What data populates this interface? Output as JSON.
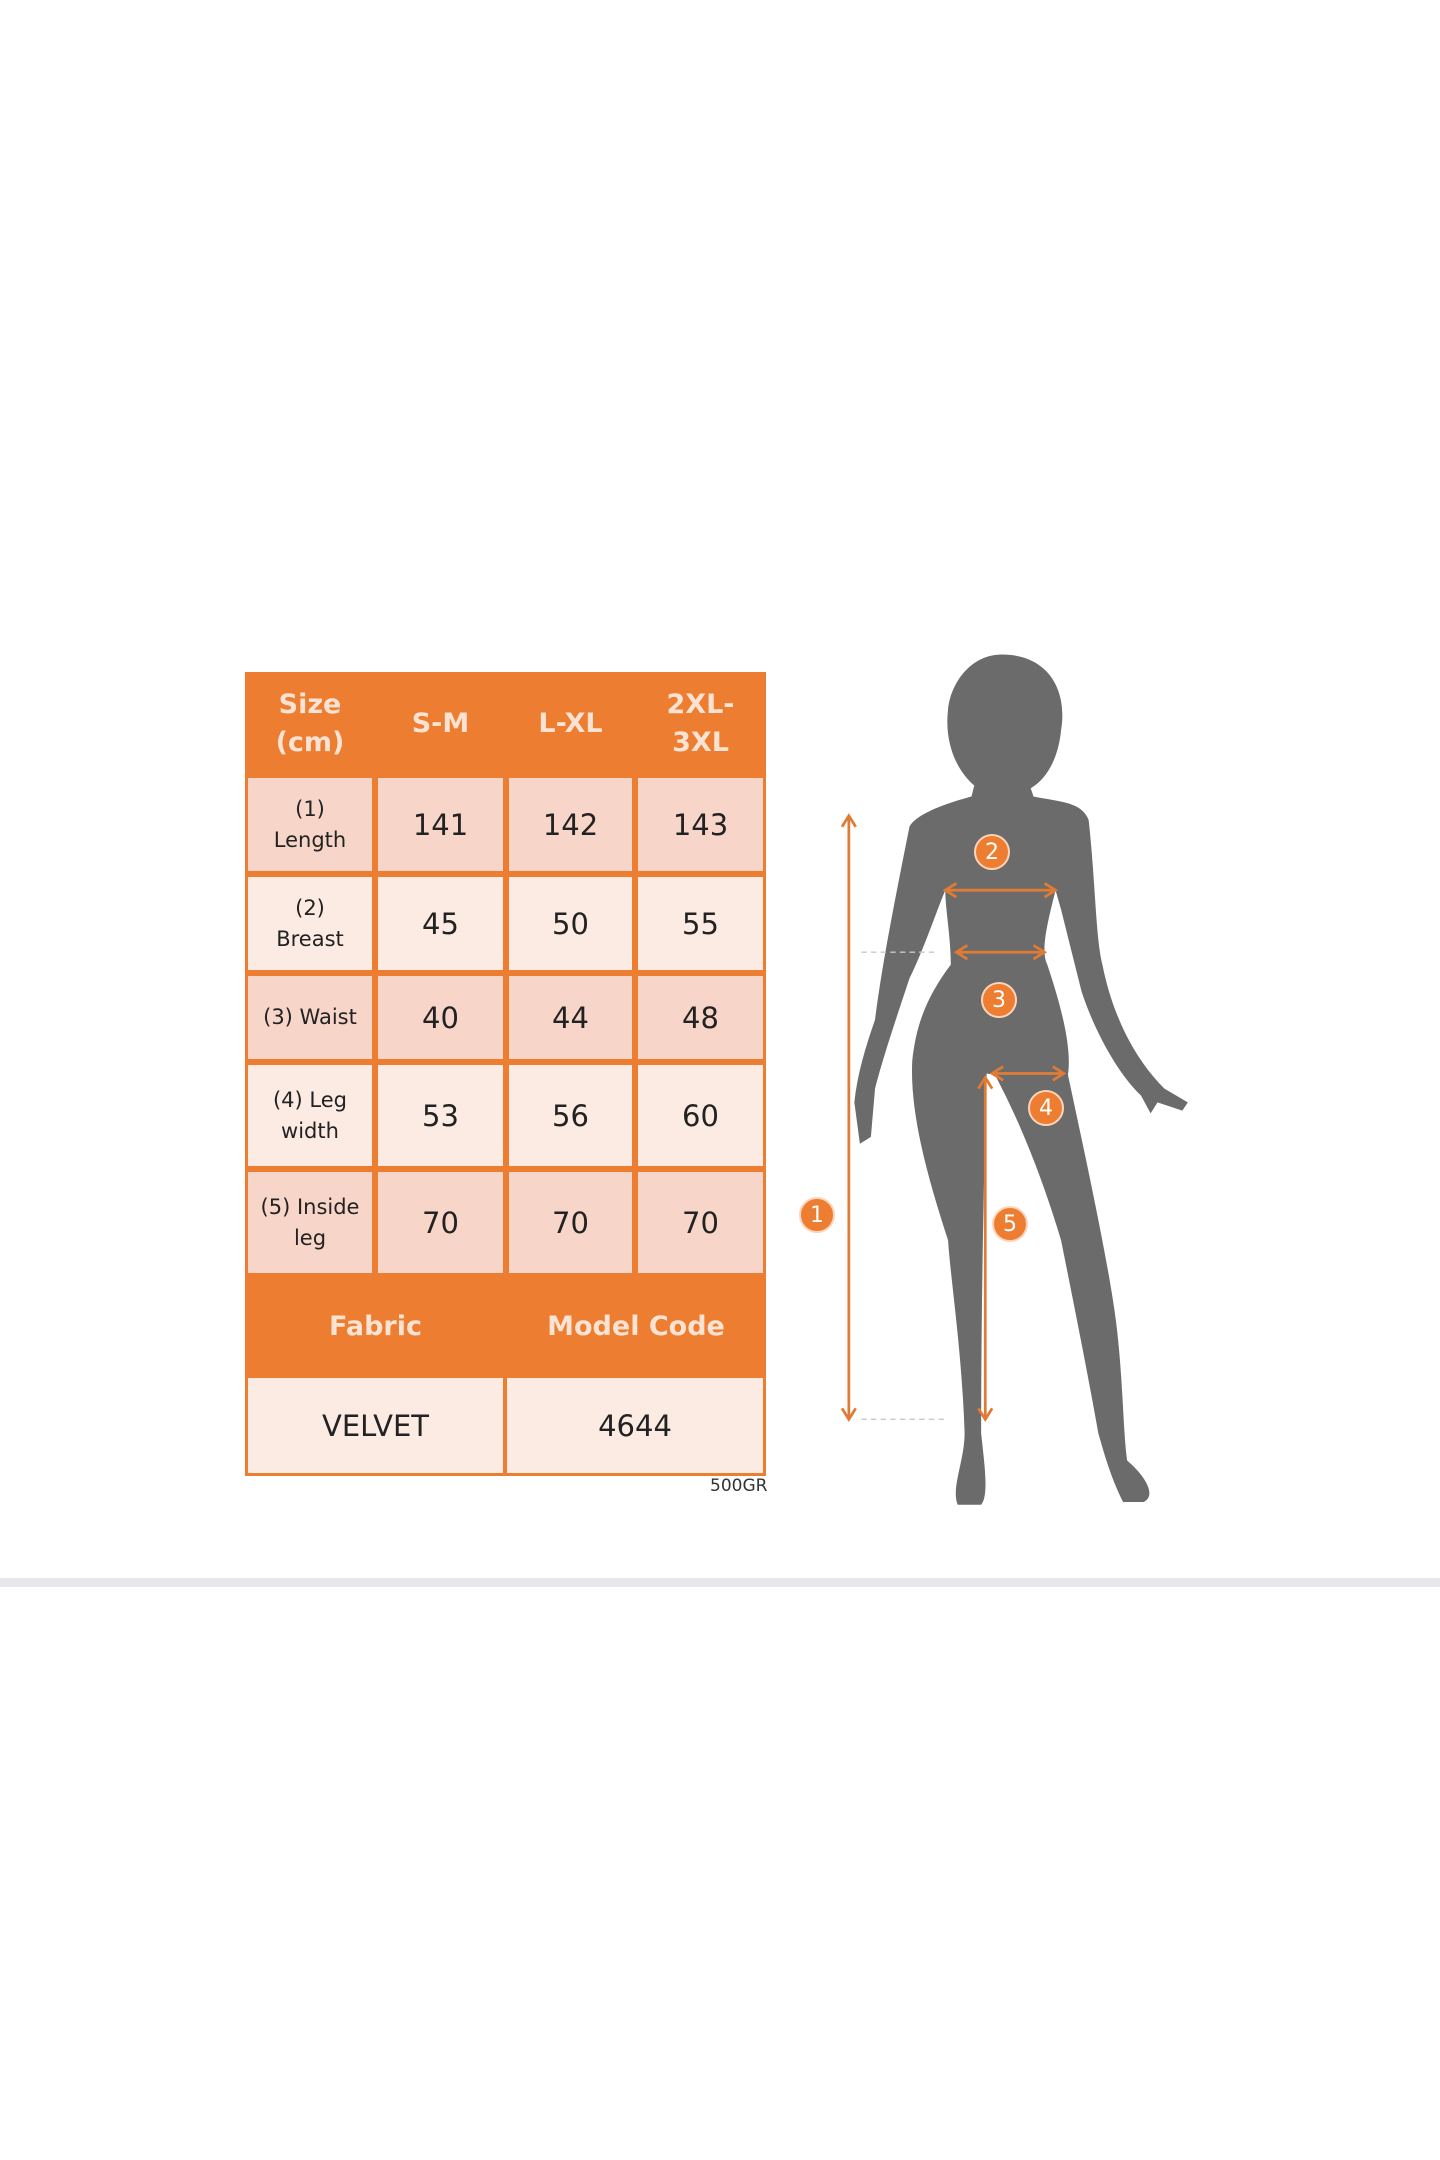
{
  "colors": {
    "accent": "#ed7d31",
    "silhouette": "#6b6b6b",
    "cell_dark": "#f7d6c9",
    "cell_light": "#fbebe3"
  },
  "size_table": {
    "header": [
      "Size (cm)",
      "S-M",
      "L-XL",
      "2XL-3XL"
    ],
    "rows": [
      {
        "label": "(1) Length",
        "values": [
          "141",
          "142",
          "143"
        ]
      },
      {
        "label": "(2) Breast",
        "values": [
          "45",
          "50",
          "55"
        ]
      },
      {
        "label": "(3) Waist",
        "values": [
          "40",
          "44",
          "48"
        ]
      },
      {
        "label": "(4) Leg width",
        "values": [
          "53",
          "56",
          "60"
        ]
      },
      {
        "label": "(5) Inside leg",
        "values": [
          "70",
          "70",
          "70"
        ]
      }
    ],
    "info_header": [
      "Fabric",
      "Model Code"
    ],
    "info_values": [
      "VELVET",
      "4644"
    ],
    "weight": "500GR"
  },
  "figure": {
    "markers": [
      "1",
      "2",
      "3",
      "4",
      "5"
    ]
  }
}
